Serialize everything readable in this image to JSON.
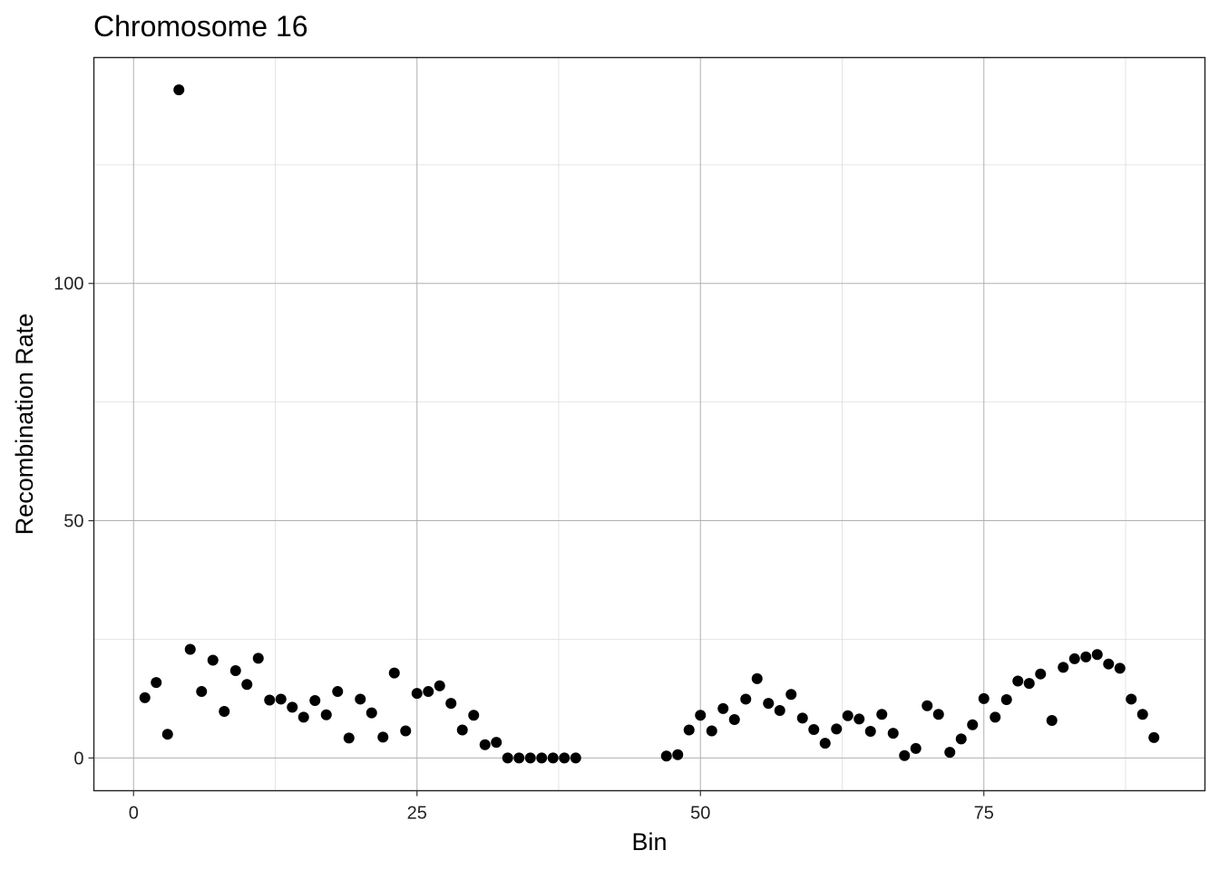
{
  "chart_data": {
    "type": "scatter",
    "title": "Chromosome 16",
    "xlabel": "Bin",
    "ylabel": "Recombination Rate",
    "xlim": [
      -3.5,
      94.5
    ],
    "ylim": [
      -6.9,
      147.6
    ],
    "x_ticks": [
      0,
      25,
      50,
      75
    ],
    "x_minor_ticks": [
      12.5,
      37.5,
      62.5,
      87.5
    ],
    "y_ticks": [
      0,
      50,
      100
    ],
    "y_minor_ticks": [
      25,
      75,
      125
    ],
    "x_tick_labels": [
      "0",
      "25",
      "50",
      "75"
    ],
    "y_tick_labels": [
      "0",
      "50",
      "100"
    ],
    "grid": true,
    "legend": "none",
    "point_color": "#000000",
    "points": [
      {
        "x": 1,
        "y": 12.7
      },
      {
        "x": 2,
        "y": 15.9
      },
      {
        "x": 3,
        "y": 5.0
      },
      {
        "x": 4,
        "y": 140.8
      },
      {
        "x": 5,
        "y": 22.9
      },
      {
        "x": 6,
        "y": 14.0
      },
      {
        "x": 7,
        "y": 20.6
      },
      {
        "x": 8,
        "y": 9.8
      },
      {
        "x": 9,
        "y": 18.4
      },
      {
        "x": 10,
        "y": 15.5
      },
      {
        "x": 11,
        "y": 21.0
      },
      {
        "x": 12,
        "y": 12.2
      },
      {
        "x": 13,
        "y": 12.4
      },
      {
        "x": 14,
        "y": 10.7
      },
      {
        "x": 15,
        "y": 8.6
      },
      {
        "x": 16,
        "y": 12.1
      },
      {
        "x": 17,
        "y": 9.1
      },
      {
        "x": 18,
        "y": 14.0
      },
      {
        "x": 19,
        "y": 4.2
      },
      {
        "x": 20,
        "y": 12.4
      },
      {
        "x": 21,
        "y": 9.5
      },
      {
        "x": 22,
        "y": 4.4
      },
      {
        "x": 23,
        "y": 17.9
      },
      {
        "x": 24,
        "y": 5.7
      },
      {
        "x": 25,
        "y": 13.6
      },
      {
        "x": 26,
        "y": 14.0
      },
      {
        "x": 27,
        "y": 15.2
      },
      {
        "x": 28,
        "y": 11.5
      },
      {
        "x": 29,
        "y": 5.9
      },
      {
        "x": 30,
        "y": 9.0
      },
      {
        "x": 31,
        "y": 2.8
      },
      {
        "x": 32,
        "y": 3.3
      },
      {
        "x": 33,
        "y": 0.0
      },
      {
        "x": 34,
        "y": 0.0
      },
      {
        "x": 35,
        "y": 0.0
      },
      {
        "x": 36,
        "y": 0.0
      },
      {
        "x": 37,
        "y": 0.0
      },
      {
        "x": 38,
        "y": 0.0
      },
      {
        "x": 39,
        "y": 0.0
      },
      {
        "x": 47,
        "y": 0.4
      },
      {
        "x": 48,
        "y": 0.7
      },
      {
        "x": 49,
        "y": 5.9
      },
      {
        "x": 50,
        "y": 9.0
      },
      {
        "x": 51,
        "y": 5.7
      },
      {
        "x": 52,
        "y": 10.4
      },
      {
        "x": 53,
        "y": 8.1
      },
      {
        "x": 54,
        "y": 12.4
      },
      {
        "x": 55,
        "y": 16.7
      },
      {
        "x": 56,
        "y": 11.5
      },
      {
        "x": 57,
        "y": 10.0
      },
      {
        "x": 58,
        "y": 13.4
      },
      {
        "x": 59,
        "y": 8.4
      },
      {
        "x": 60,
        "y": 6.0
      },
      {
        "x": 61,
        "y": 3.1
      },
      {
        "x": 62,
        "y": 6.1
      },
      {
        "x": 63,
        "y": 8.9
      },
      {
        "x": 64,
        "y": 8.2
      },
      {
        "x": 65,
        "y": 5.6
      },
      {
        "x": 66,
        "y": 9.2
      },
      {
        "x": 67,
        "y": 5.2
      },
      {
        "x": 68,
        "y": 0.5
      },
      {
        "x": 69,
        "y": 2.0
      },
      {
        "x": 70,
        "y": 11.0
      },
      {
        "x": 71,
        "y": 9.2
      },
      {
        "x": 72,
        "y": 1.2
      },
      {
        "x": 73,
        "y": 4.0
      },
      {
        "x": 74,
        "y": 7.0
      },
      {
        "x": 75,
        "y": 12.5
      },
      {
        "x": 76,
        "y": 8.6
      },
      {
        "x": 77,
        "y": 12.3
      },
      {
        "x": 78,
        "y": 16.2
      },
      {
        "x": 79,
        "y": 15.7
      },
      {
        "x": 80,
        "y": 17.7
      },
      {
        "x": 81,
        "y": 7.9
      },
      {
        "x": 82,
        "y": 19.1
      },
      {
        "x": 83,
        "y": 20.9
      },
      {
        "x": 84,
        "y": 21.3
      },
      {
        "x": 85,
        "y": 21.8
      },
      {
        "x": 86,
        "y": 19.8
      },
      {
        "x": 87,
        "y": 18.9
      },
      {
        "x": 88,
        "y": 12.4
      },
      {
        "x": 89,
        "y": 9.2
      },
      {
        "x": 90,
        "y": 4.3
      }
    ]
  }
}
